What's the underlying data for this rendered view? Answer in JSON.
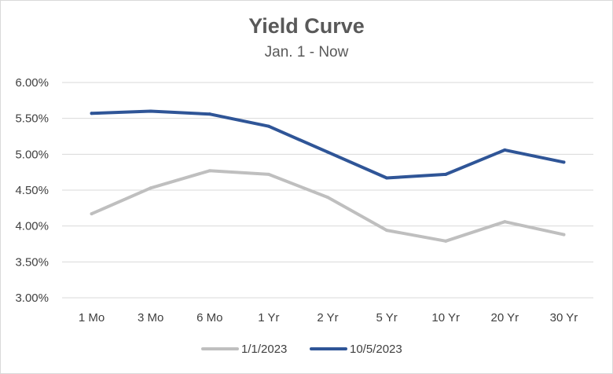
{
  "chart_data": {
    "type": "line",
    "title": "Yield Curve",
    "subtitle": "Jan. 1 - Now",
    "xlabel": "",
    "ylabel": "",
    "categories": [
      "1 Mo",
      "3 Mo",
      "6 Mo",
      "1 Yr",
      "2 Yr",
      "5 Yr",
      "10 Yr",
      "20 Yr",
      "30 Yr"
    ],
    "ylim": [
      3.0,
      6.0
    ],
    "yticks": [
      "3.00%",
      "3.50%",
      "4.00%",
      "4.50%",
      "5.00%",
      "5.50%",
      "6.00%"
    ],
    "ytick_values": [
      3.0,
      3.5,
      4.0,
      4.5,
      5.0,
      5.5,
      6.0
    ],
    "grid": true,
    "legend_position": "bottom",
    "series": [
      {
        "name": "1/1/2023",
        "color": "#bfbfbf",
        "values": [
          4.17,
          4.53,
          4.77,
          4.72,
          4.4,
          3.94,
          3.79,
          4.06,
          3.88
        ]
      },
      {
        "name": "10/5/2023",
        "color": "#2f5597",
        "values": [
          5.57,
          5.6,
          5.56,
          5.39,
          5.03,
          4.67,
          4.72,
          5.06,
          4.89
        ]
      }
    ]
  }
}
